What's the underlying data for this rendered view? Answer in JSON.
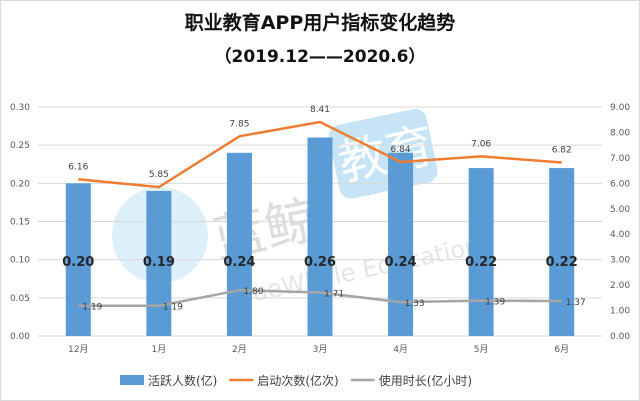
{
  "chart_data": {
    "type": "bar+line",
    "title": "职业教育APP用户指标变化趋势",
    "subtitle": "（2019.12——2020.6）",
    "categories": [
      "12月",
      "1月",
      "2月",
      "3月",
      "4月",
      "5月",
      "6月"
    ],
    "y_left": {
      "range": [
        0,
        0.3
      ],
      "ticks": [
        "0.00",
        "0.05",
        "0.10",
        "0.15",
        "0.20",
        "0.25",
        "0.30"
      ]
    },
    "y_right": {
      "range": [
        0,
        9
      ],
      "ticks": [
        "0.00",
        "1.00",
        "2.00",
        "3.00",
        "4.00",
        "5.00",
        "6.00",
        "7.00",
        "8.00",
        "9.00"
      ]
    },
    "grid": true,
    "legend_position": "bottom",
    "series": [
      {
        "name": "活跃人数(亿)",
        "type": "bar",
        "axis": "left",
        "color": "#5b9bd5",
        "values": [
          0.2,
          0.19,
          0.24,
          0.26,
          0.24,
          0.22,
          0.22
        ],
        "labels": [
          "0.20",
          "0.19",
          "0.24",
          "0.26",
          "0.24",
          "0.22",
          "0.22"
        ]
      },
      {
        "name": "启动次数(亿次)",
        "type": "line",
        "axis": "right",
        "color": "#ed7d31",
        "values": [
          6.16,
          5.85,
          7.85,
          8.41,
          6.84,
          7.06,
          6.82
        ],
        "labels": [
          "6.16",
          "5.85",
          "7.85",
          "8.41",
          "6.84",
          "7.06",
          "6.82"
        ]
      },
      {
        "name": "使用时长(亿小时)",
        "type": "line",
        "axis": "right",
        "color": "#a5a5a5",
        "values": [
          1.19,
          1.19,
          1.8,
          1.71,
          1.33,
          1.39,
          1.37
        ],
        "labels": [
          "1.19",
          "1.19",
          "1.80",
          "1.71",
          "1.33",
          "1.39",
          "1.37"
        ]
      }
    ]
  },
  "watermark": {
    "cn": "蓝鲸",
    "box": "教育",
    "en": "BlueWhale Education"
  }
}
